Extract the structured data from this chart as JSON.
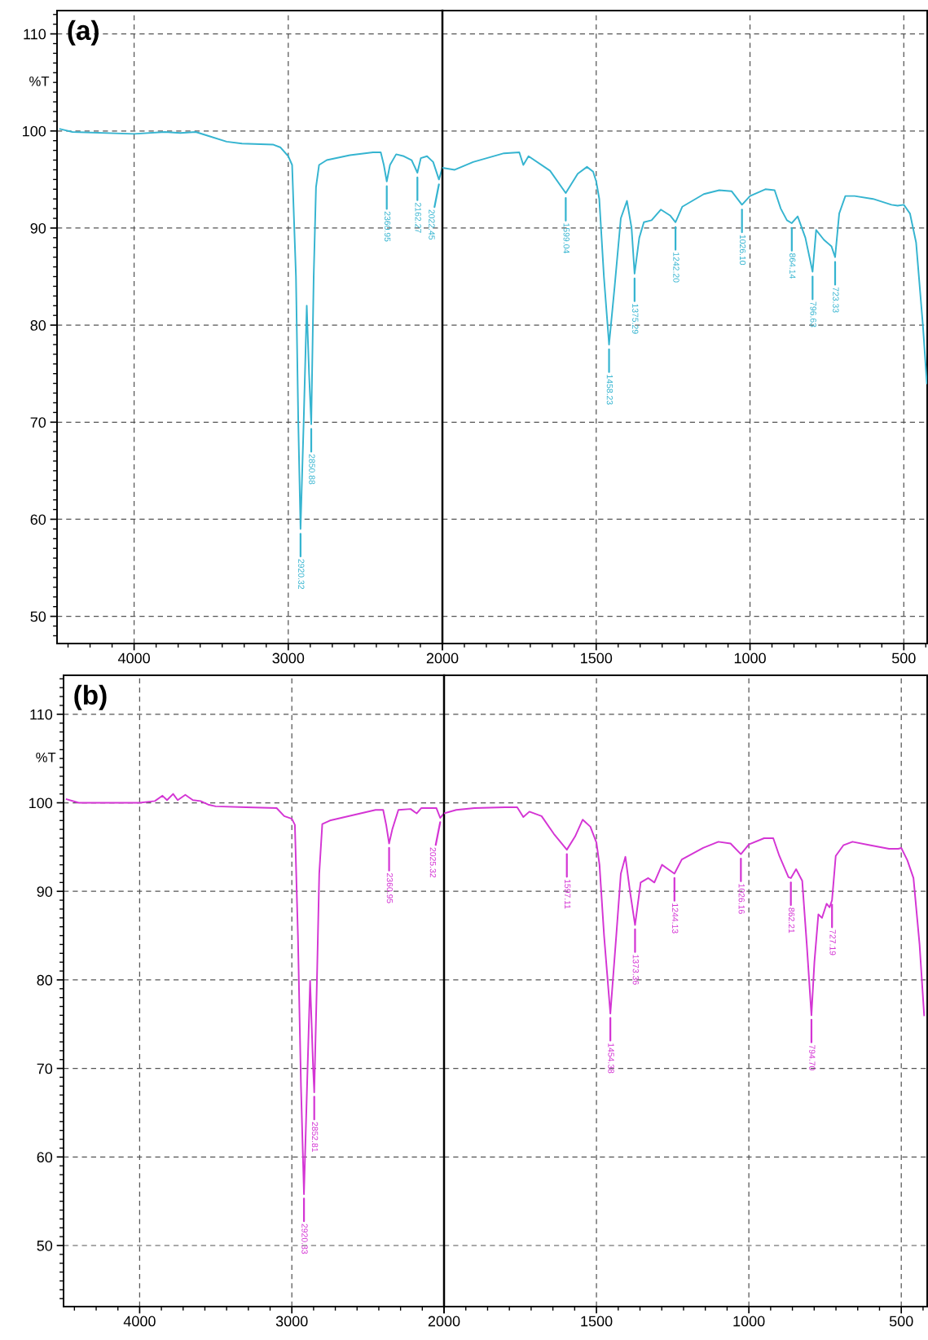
{
  "chart_data": [
    {
      "type": "line",
      "title": "(a)",
      "ylabel": "%T",
      "x": [
        4480,
        4400,
        4000,
        3800,
        3700,
        3600,
        3520,
        3400,
        3300,
        3100,
        3050,
        3000,
        2975,
        2950,
        2935,
        2920.32,
        2900,
        2880,
        2865,
        2850.88,
        2835,
        2820,
        2800,
        2750,
        2600,
        2450,
        2400,
        2380,
        2360.95,
        2340,
        2300,
        2250,
        2200,
        2162.27,
        2140,
        2100,
        2060,
        2022.45,
        2000
      ],
      "series": [
        {
          "color": "#35b4d0",
          "values": [
            100.2,
            99.9,
            99.7,
            99.9,
            99.8,
            99.9,
            99.5,
            98.9,
            98.7,
            98.6,
            98.3,
            97.4,
            96.5,
            85,
            70,
            59.0,
            70,
            82.0,
            75,
            69.8,
            85,
            94.2,
            96.5,
            97.0,
            97.5,
            97.8,
            97.8,
            96.5,
            94.8,
            96.5,
            97.6,
            97.4,
            97.0,
            95.7,
            97.2,
            97.4,
            96.8,
            95.0,
            96.2
          ]
        }
      ],
      "xlim": [
        4500,
        2000
      ],
      "xticks": [
        4000,
        3000,
        2000
      ],
      "ylim": [
        47.2,
        112.4
      ],
      "yticks": [
        50,
        60,
        70,
        80,
        90,
        100,
        110
      ],
      "grid": true,
      "marker": "none",
      "line_style": "solid",
      "annotations": [
        {
          "text": "2920.32",
          "x": 2920.32,
          "y": 59.0
        },
        {
          "text": "2850.88",
          "x": 2850.88,
          "y": 69.8
        },
        {
          "text": "2360.95",
          "x": 2360.95,
          "y": 94.8
        },
        {
          "text": "2162.27",
          "x": 2162.27,
          "y": 95.7
        },
        {
          "text": "2022.45",
          "x": 2022.45,
          "y": 95.0
        }
      ]
    },
    {
      "type": "line",
      "tick_labels": "x",
      "x": [
        2000,
        1960,
        1900,
        1800,
        1750,
        1737,
        1720,
        1650,
        1599.04,
        1560,
        1530,
        1510,
        1500,
        1490,
        1475,
        1458.23,
        1440,
        1420,
        1400,
        1385,
        1375.29,
        1360,
        1345,
        1320,
        1290,
        1260,
        1242.2,
        1220,
        1150,
        1100,
        1060,
        1026.1,
        1000,
        950,
        920,
        900,
        880,
        864.14,
        845,
        820,
        796.63,
        785,
        760,
        735,
        723.33,
        710,
        690,
        660,
        600,
        540,
        520,
        500,
        480,
        460,
        438,
        425
      ],
      "series": [
        {
          "color": "#35b4d0",
          "values": [
            96.2,
            96.0,
            96.8,
            97.7,
            97.8,
            96.5,
            97.4,
            95.9,
            93.6,
            95.6,
            96.3,
            95.8,
            94.8,
            93,
            85,
            78.0,
            84,
            91.0,
            92.8,
            90,
            85.3,
            89,
            90.6,
            90.8,
            91.9,
            91.3,
            90.6,
            92.2,
            93.5,
            93.9,
            93.8,
            92.4,
            93.3,
            94.0,
            93.9,
            92,
            90.8,
            90.5,
            91.2,
            89,
            85.5,
            89.8,
            88.8,
            88.1,
            87.0,
            91.5,
            93.3,
            93.3,
            93.0,
            92.4,
            92.3,
            92.4,
            91.5,
            88.5,
            80,
            74
          ]
        }
      ],
      "xlim": [
        2000,
        424
      ],
      "xticks": [
        {
          "value": 2000,
          "label": null
        },
        1500,
        1000,
        500
      ],
      "ylim": [
        47.2,
        112.4
      ],
      "yticks": [
        50,
        60,
        70,
        80,
        90,
        100,
        110
      ],
      "grid": true,
      "marker": "none",
      "line_style": "solid",
      "annotations": [
        {
          "text": "1599.04",
          "x": 1599.04,
          "y": 93.6
        },
        {
          "text": "1458.23",
          "x": 1458.23,
          "y": 78.0
        },
        {
          "text": "1375.29",
          "x": 1375.29,
          "y": 85.3
        },
        {
          "text": "1242.20",
          "x": 1242.2,
          "y": 90.6
        },
        {
          "text": "1026.10",
          "x": 1026.1,
          "y": 92.4
        },
        {
          "text": "864.14",
          "x": 864.14,
          "y": 90.5
        },
        {
          "text": "796.63",
          "x": 796.63,
          "y": 85.5
        },
        {
          "text": "723.33",
          "x": 723.33,
          "y": 87.0
        }
      ]
    },
    {
      "type": "line",
      "title": "(b)",
      "ylabel": "%T",
      "x": [
        4480,
        4400,
        4000,
        3900,
        3850,
        3820,
        3780,
        3750,
        3700,
        3650,
        3600,
        3550,
        3500,
        3300,
        3100,
        3050,
        3000,
        2980,
        2960,
        2940,
        2920.33,
        2900,
        2880,
        2860,
        2852.81,
        2835,
        2820,
        2800,
        2750,
        2600,
        2450,
        2400,
        2380,
        2360.95,
        2340,
        2300,
        2220,
        2180,
        2150,
        2050,
        2025.32,
        2000
      ],
      "series": [
        {
          "color": "#d435d4",
          "values": [
            100.4,
            100.0,
            100.0,
            100.2,
            100.8,
            100.3,
            101.0,
            100.3,
            100.9,
            100.3,
            100.2,
            99.8,
            99.6,
            99.5,
            99.4,
            98.5,
            98.2,
            97.5,
            85,
            68,
            55.8,
            68,
            79.9,
            70,
            67.3,
            80,
            92,
            97.6,
            98,
            98.6,
            99.2,
            99.2,
            97.5,
            95.4,
            97,
            99.2,
            99.3,
            98.8,
            99.4,
            99.4,
            98.3,
            98.8
          ]
        }
      ],
      "xlim": [
        4500,
        2000
      ],
      "xticks": [
        4000,
        3000,
        2000
      ],
      "ylim": [
        43.1,
        114.4
      ],
      "yticks": [
        50,
        60,
        70,
        80,
        90,
        100,
        110
      ],
      "grid": true,
      "marker": "none",
      "line_style": "solid",
      "annotations": [
        {
          "text": "2920.33",
          "x": 2920.33,
          "y": 55.8
        },
        {
          "text": "2852.81",
          "x": 2852.81,
          "y": 67.3
        },
        {
          "text": "2360.95",
          "x": 2360.95,
          "y": 95.4
        },
        {
          "text": "2025.32",
          "x": 2025.32,
          "y": 98.3
        }
      ]
    },
    {
      "type": "line",
      "tick_labels": "x",
      "x": [
        2000,
        1960,
        1900,
        1800,
        1760,
        1740,
        1720,
        1680,
        1640,
        1597.11,
        1570,
        1545,
        1520,
        1500,
        1490,
        1475,
        1454.38,
        1435,
        1420,
        1405,
        1390,
        1373.36,
        1355,
        1330,
        1310,
        1285,
        1265,
        1244.13,
        1220,
        1150,
        1100,
        1060,
        1026.16,
        1000,
        950,
        920,
        900,
        870,
        862.21,
        845,
        825,
        810,
        794.7,
        785,
        772,
        760,
        745,
        735,
        727.19,
        715,
        690,
        660,
        600,
        540,
        510,
        500,
        480,
        460,
        440,
        425
      ],
      "series": [
        {
          "color": "#d435d4",
          "values": [
            98.8,
            99.2,
            99.4,
            99.5,
            99.5,
            98.4,
            99.0,
            98.5,
            96.5,
            94.7,
            96.2,
            98.1,
            97.3,
            95.5,
            93,
            85,
            76.2,
            85,
            92,
            93.9,
            90,
            86.2,
            91.0,
            91.5,
            91.0,
            93.0,
            92.5,
            92.0,
            93.6,
            94.9,
            95.6,
            95.4,
            94.2,
            95.3,
            96.0,
            96.0,
            94,
            91.6,
            91.5,
            92.5,
            91.2,
            84,
            76.0,
            82,
            87.4,
            87,
            88.6,
            88.2,
            89,
            94,
            95.2,
            95.6,
            95.2,
            94.8,
            94.8,
            94.9,
            93.5,
            91.5,
            84,
            76
          ]
        }
      ],
      "xlim": [
        2000,
        415
      ],
      "xticks": [
        {
          "value": 2000,
          "label": null
        },
        1500,
        1000,
        500
      ],
      "ylim": [
        43.1,
        114.4
      ],
      "yticks": [
        50,
        60,
        70,
        80,
        90,
        100,
        110
      ],
      "grid": true,
      "marker": "none",
      "line_style": "solid",
      "annotations": [
        {
          "text": "1597.11",
          "x": 1597.11,
          "y": 94.7
        },
        {
          "text": "1454.38",
          "x": 1454.38,
          "y": 76.2
        },
        {
          "text": "1373.36",
          "x": 1373.36,
          "y": 86.2
        },
        {
          "text": "1244.13",
          "x": 1244.13,
          "y": 92.0
        },
        {
          "text": "1026.16",
          "x": 1026.16,
          "y": 94.2
        },
        {
          "text": "862.21",
          "x": 862.21,
          "y": 91.5
        },
        {
          "text": "794.70",
          "x": 794.7,
          "y": 76.0
        },
        {
          "text": "727.19",
          "x": 727.19,
          "y": 89
        }
      ]
    }
  ]
}
